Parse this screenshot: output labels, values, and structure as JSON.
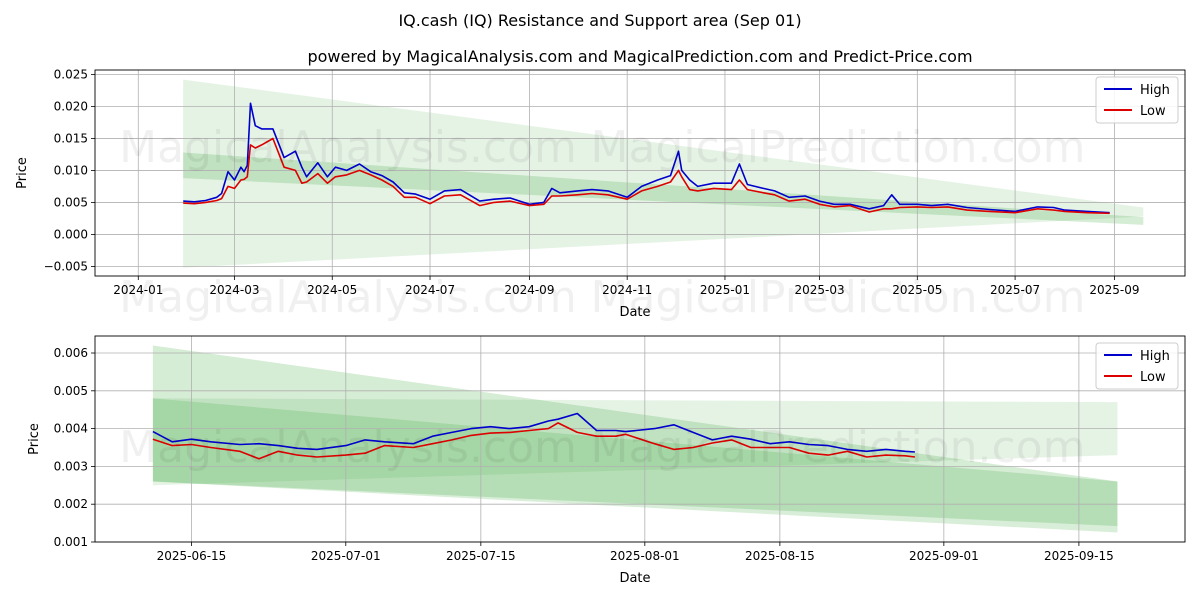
{
  "title": "IQ.cash (IQ) Resistance and Support area (Sep 01)",
  "subtitle": "powered by MagicalAnalysis.com and MagicalPrediction.com and Predict-Price.com",
  "watermarks": [
    "MagicalAnalysis.com",
    "MagicalPrediction.com"
  ],
  "colors": {
    "high": "#0000cc",
    "low": "#dd0000",
    "band": "#2ca02c",
    "grid": "#b0b0b0"
  },
  "chart_data": [
    {
      "type": "line",
      "panel": "full-history",
      "xlabel": "Date",
      "ylabel": "Price",
      "x_ticks": [
        "2024-01",
        "2024-03",
        "2024-05",
        "2024-07",
        "2024-09",
        "2024-11",
        "2025-01",
        "2025-03",
        "2025-05",
        "2025-07",
        "2025-09"
      ],
      "xlim": [
        "2023-12-05",
        "2025-10-15"
      ],
      "y_ticks": [
        "-0.005",
        "0.000",
        "0.005",
        "0.010",
        "0.015",
        "0.020",
        "0.025"
      ],
      "ylim": [
        -0.0065,
        0.0257
      ],
      "grid": true,
      "legend": {
        "position": "top-right",
        "entries": [
          "High",
          "Low"
        ]
      },
      "bands": [
        {
          "x": [
            "2024-01-29",
            "2025-09-19"
          ],
          "upper": [
            0.0242,
            0.0042
          ],
          "lower": [
            -0.0052,
            0.0028
          ],
          "opacity": 0.12
        },
        {
          "x": [
            "2024-01-29",
            "2025-09-19"
          ],
          "upper": [
            0.0128,
            0.0027
          ],
          "lower": [
            0.0088,
            0.0015
          ],
          "opacity": 0.2
        }
      ],
      "series": [
        {
          "name": "High",
          "x": [
            "2024-01-29",
            "2024-02-05",
            "2024-02-12",
            "2024-02-19",
            "2024-02-22",
            "2024-02-26",
            "2024-03-01",
            "2024-03-05",
            "2024-03-07",
            "2024-03-09",
            "2024-03-11",
            "2024-03-14",
            "2024-03-18",
            "2024-03-25",
            "2024-04-01",
            "2024-04-08",
            "2024-04-12",
            "2024-04-15",
            "2024-04-22",
            "2024-04-28",
            "2024-05-03",
            "2024-05-10",
            "2024-05-18",
            "2024-05-25",
            "2024-06-01",
            "2024-06-08",
            "2024-06-15",
            "2024-06-22",
            "2024-07-01",
            "2024-07-10",
            "2024-07-20",
            "2024-08-01",
            "2024-08-10",
            "2024-08-20",
            "2024-09-01",
            "2024-09-10",
            "2024-09-15",
            "2024-09-20",
            "2024-10-01",
            "2024-10-10",
            "2024-10-20",
            "2024-11-01",
            "2024-11-10",
            "2024-11-20",
            "2024-11-28",
            "2024-12-03",
            "2024-12-05",
            "2024-12-10",
            "2024-12-15",
            "2024-12-25",
            "2025-01-05",
            "2025-01-10",
            "2025-01-15",
            "2025-01-25",
            "2025-02-01",
            "2025-02-10",
            "2025-02-20",
            "2025-03-01",
            "2025-03-10",
            "2025-03-20",
            "2025-04-01",
            "2025-04-10",
            "2025-04-15",
            "2025-04-20",
            "2025-05-01",
            "2025-05-10",
            "2025-05-20",
            "2025-06-01",
            "2025-06-15",
            "2025-07-01",
            "2025-07-15",
            "2025-07-25",
            "2025-08-01",
            "2025-08-15",
            "2025-08-29"
          ],
          "values": [
            0.0052,
            0.0051,
            0.0053,
            0.0058,
            0.0064,
            0.0098,
            0.0085,
            0.0105,
            0.0098,
            0.0108,
            0.0205,
            0.017,
            0.0165,
            0.0165,
            0.012,
            0.013,
            0.0105,
            0.009,
            0.0112,
            0.009,
            0.0105,
            0.01,
            0.011,
            0.0098,
            0.0092,
            0.0082,
            0.0065,
            0.0063,
            0.0055,
            0.0068,
            0.007,
            0.0052,
            0.0055,
            0.0057,
            0.0047,
            0.005,
            0.0072,
            0.0065,
            0.0068,
            0.007,
            0.0068,
            0.0058,
            0.0075,
            0.0085,
            0.0092,
            0.013,
            0.01,
            0.0085,
            0.0075,
            0.008,
            0.008,
            0.011,
            0.0078,
            0.0072,
            0.0068,
            0.0058,
            0.006,
            0.0052,
            0.0047,
            0.0047,
            0.004,
            0.0045,
            0.0062,
            0.0047,
            0.0047,
            0.0045,
            0.0047,
            0.0042,
            0.0039,
            0.0036,
            0.0043,
            0.0042,
            0.0038,
            0.0036,
            0.0034
          ]
        },
        {
          "name": "Low",
          "x": [
            "2024-01-29",
            "2024-02-05",
            "2024-02-12",
            "2024-02-19",
            "2024-02-22",
            "2024-02-26",
            "2024-03-01",
            "2024-03-05",
            "2024-03-07",
            "2024-03-09",
            "2024-03-11",
            "2024-03-14",
            "2024-03-18",
            "2024-03-25",
            "2024-04-01",
            "2024-04-08",
            "2024-04-12",
            "2024-04-15",
            "2024-04-22",
            "2024-04-28",
            "2024-05-03",
            "2024-05-10",
            "2024-05-18",
            "2024-05-25",
            "2024-06-01",
            "2024-06-08",
            "2024-06-15",
            "2024-06-22",
            "2024-07-01",
            "2024-07-10",
            "2024-07-20",
            "2024-08-01",
            "2024-08-10",
            "2024-08-20",
            "2024-09-01",
            "2024-09-10",
            "2024-09-15",
            "2024-09-20",
            "2024-10-01",
            "2024-10-10",
            "2024-10-20",
            "2024-11-01",
            "2024-11-10",
            "2024-11-20",
            "2024-11-28",
            "2024-12-03",
            "2024-12-05",
            "2024-12-10",
            "2024-12-15",
            "2024-12-25",
            "2025-01-05",
            "2025-01-10",
            "2025-01-15",
            "2025-01-25",
            "2025-02-01",
            "2025-02-10",
            "2025-02-20",
            "2025-03-01",
            "2025-03-10",
            "2025-03-20",
            "2025-04-01",
            "2025-04-10",
            "2025-04-15",
            "2025-04-20",
            "2025-05-01",
            "2025-05-10",
            "2025-05-20",
            "2025-06-01",
            "2025-06-15",
            "2025-07-01",
            "2025-07-15",
            "2025-07-25",
            "2025-08-01",
            "2025-08-15",
            "2025-08-29"
          ],
          "values": [
            0.0049,
            0.0048,
            0.005,
            0.0053,
            0.0056,
            0.0075,
            0.0072,
            0.0085,
            0.0086,
            0.009,
            0.014,
            0.0135,
            0.014,
            0.015,
            0.0105,
            0.01,
            0.008,
            0.0082,
            0.0095,
            0.008,
            0.009,
            0.0093,
            0.01,
            0.0093,
            0.0085,
            0.0075,
            0.0058,
            0.0058,
            0.0048,
            0.006,
            0.0062,
            0.0045,
            0.005,
            0.0052,
            0.0045,
            0.0047,
            0.006,
            0.006,
            0.0062,
            0.0064,
            0.0062,
            0.0055,
            0.0068,
            0.0075,
            0.0082,
            0.01,
            0.009,
            0.007,
            0.0068,
            0.0072,
            0.007,
            0.0085,
            0.007,
            0.0065,
            0.0062,
            0.0052,
            0.0055,
            0.0047,
            0.0043,
            0.0045,
            0.0035,
            0.004,
            0.004,
            0.0042,
            0.0043,
            0.0042,
            0.0043,
            0.0038,
            0.0036,
            0.0034,
            0.004,
            0.0038,
            0.0036,
            0.0034,
            0.0033
          ]
        }
      ]
    },
    {
      "type": "line",
      "panel": "recent-zoom",
      "xlabel": "Date",
      "ylabel": "Price",
      "x_ticks": [
        "2025-06-15",
        "2025-07-01",
        "2025-07-15",
        "2025-08-01",
        "2025-08-15",
        "2025-09-01",
        "2025-09-15"
      ],
      "xlim": [
        "2025-06-05",
        "2025-09-26"
      ],
      "y_ticks": [
        "0.001",
        "0.002",
        "0.003",
        "0.004",
        "0.005",
        "0.006"
      ],
      "ylim": [
        0.001,
        0.00645
      ],
      "grid": true,
      "legend": {
        "position": "top-right",
        "entries": [
          "High",
          "Low"
        ]
      },
      "bands": [
        {
          "x": [
            "2025-06-11",
            "2025-09-19"
          ],
          "upper": [
            0.0062,
            0.0026
          ],
          "lower": [
            0.0026,
            0.00142
          ],
          "opacity": 0.2
        },
        {
          "x": [
            "2025-06-11",
            "2025-09-19"
          ],
          "upper": [
            0.0048,
            0.0047
          ],
          "lower": [
            0.0025,
            0.0033
          ],
          "opacity": 0.12
        },
        {
          "x": [
            "2025-06-11",
            "2025-09-19"
          ],
          "upper": [
            0.0048,
            0.0026
          ],
          "lower": [
            0.0026,
            0.00125
          ],
          "opacity": 0.18
        }
      ],
      "series": [
        {
          "name": "High",
          "x": [
            "2025-06-11",
            "2025-06-13",
            "2025-06-15",
            "2025-06-17",
            "2025-06-20",
            "2025-06-22",
            "2025-06-24",
            "2025-06-26",
            "2025-06-28",
            "2025-07-01",
            "2025-07-03",
            "2025-07-05",
            "2025-07-08",
            "2025-07-10",
            "2025-07-12",
            "2025-07-14",
            "2025-07-16",
            "2025-07-18",
            "2025-07-20",
            "2025-07-22",
            "2025-07-23",
            "2025-07-25",
            "2025-07-27",
            "2025-07-29",
            "2025-07-30",
            "2025-08-02",
            "2025-08-04",
            "2025-08-06",
            "2025-08-08",
            "2025-08-10",
            "2025-08-12",
            "2025-08-14",
            "2025-08-16",
            "2025-08-18",
            "2025-08-20",
            "2025-08-22",
            "2025-08-24",
            "2025-08-26",
            "2025-08-28",
            "2025-08-29"
          ],
          "values": [
            0.00392,
            0.00365,
            0.00372,
            0.00365,
            0.00358,
            0.0036,
            0.00355,
            0.00348,
            0.00345,
            0.00355,
            0.0037,
            0.00365,
            0.0036,
            0.0038,
            0.0039,
            0.004,
            0.00405,
            0.004,
            0.00405,
            0.0042,
            0.00425,
            0.0044,
            0.00395,
            0.00395,
            0.00392,
            0.004,
            0.0041,
            0.0039,
            0.0037,
            0.0038,
            0.00372,
            0.0036,
            0.00365,
            0.00358,
            0.00355,
            0.00345,
            0.0034,
            0.00345,
            0.0034,
            0.00338
          ]
        },
        {
          "name": "Low",
          "x": [
            "2025-06-11",
            "2025-06-13",
            "2025-06-15",
            "2025-06-17",
            "2025-06-20",
            "2025-06-22",
            "2025-06-24",
            "2025-06-26",
            "2025-06-28",
            "2025-07-01",
            "2025-07-03",
            "2025-07-05",
            "2025-07-08",
            "2025-07-10",
            "2025-07-12",
            "2025-07-14",
            "2025-07-16",
            "2025-07-18",
            "2025-07-20",
            "2025-07-22",
            "2025-07-23",
            "2025-07-25",
            "2025-07-27",
            "2025-07-29",
            "2025-07-30",
            "2025-08-02",
            "2025-08-04",
            "2025-08-06",
            "2025-08-08",
            "2025-08-10",
            "2025-08-12",
            "2025-08-14",
            "2025-08-16",
            "2025-08-18",
            "2025-08-20",
            "2025-08-22",
            "2025-08-24",
            "2025-08-26",
            "2025-08-28",
            "2025-08-29"
          ],
          "values": [
            0.00372,
            0.00355,
            0.00358,
            0.0035,
            0.0034,
            0.0032,
            0.0034,
            0.0033,
            0.00325,
            0.0033,
            0.00335,
            0.00355,
            0.0035,
            0.0036,
            0.0037,
            0.00382,
            0.00388,
            0.0039,
            0.00395,
            0.004,
            0.00415,
            0.0039,
            0.0038,
            0.0038,
            0.00385,
            0.0036,
            0.00345,
            0.0035,
            0.00362,
            0.0037,
            0.0035,
            0.0035,
            0.0035,
            0.00335,
            0.0033,
            0.0034,
            0.00325,
            0.0033,
            0.00328,
            0.00325
          ]
        }
      ]
    }
  ]
}
